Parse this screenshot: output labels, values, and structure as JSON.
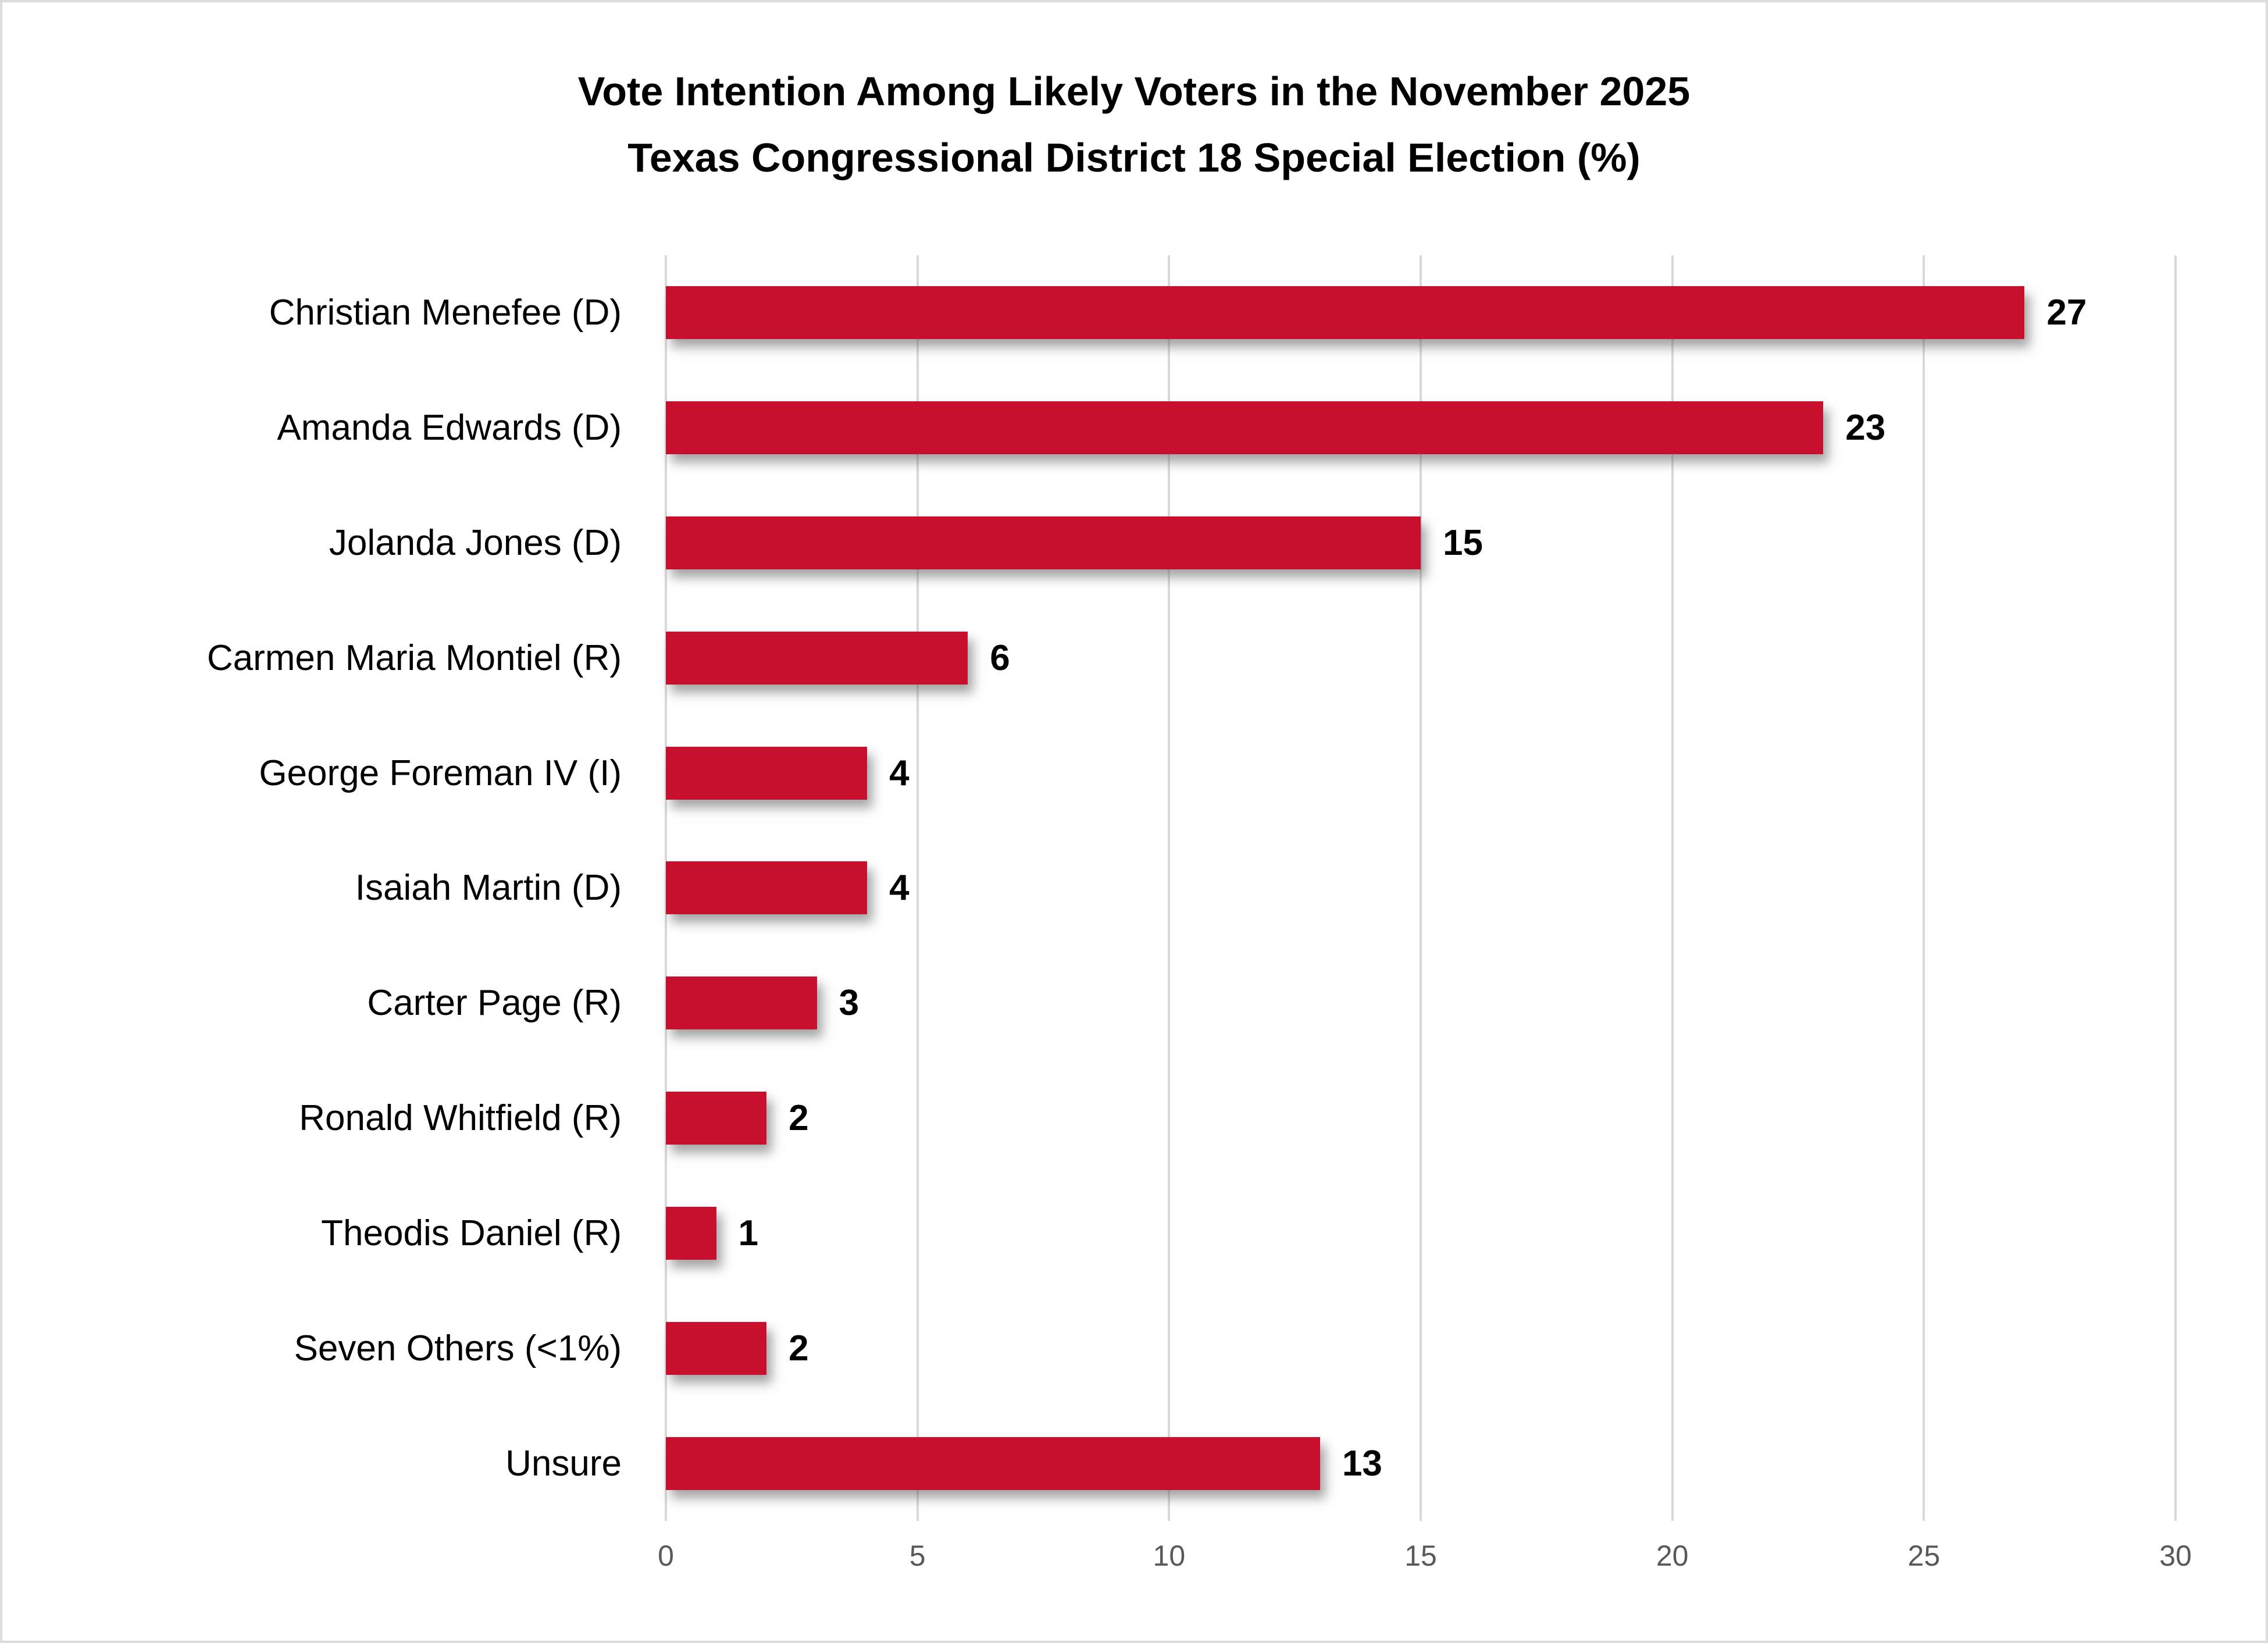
{
  "title": {
    "line1": "Vote Intention Among Likely Voters in the November 2025",
    "line2": "Texas Congressional District 18 Special Election (%)"
  },
  "chart_data": {
    "type": "bar",
    "orientation": "horizontal",
    "title": "Vote Intention Among Likely Voters in the November 2025 Texas Congressional District 18 Special Election (%)",
    "categories": [
      "Christian Menefee (D)",
      "Amanda Edwards (D)",
      "Jolanda Jones (D)",
      "Carmen Maria Montiel (R)",
      "George Foreman IV (I)",
      "Isaiah Martin (D)",
      "Carter Page (R)",
      "Ronald Whitfield (R)",
      "Theodis Daniel (R)",
      "Seven Others (<1%)",
      "Unsure"
    ],
    "values": [
      27,
      23,
      15,
      6,
      4,
      4,
      3,
      2,
      1,
      2,
      13
    ],
    "value_labels": [
      "27",
      "23",
      "15",
      "6",
      "4",
      "4",
      "3",
      "2",
      "1",
      "2",
      "13"
    ],
    "xlabel": "",
    "ylabel": "",
    "xlim": [
      0,
      30
    ],
    "xticks": [
      0,
      5,
      10,
      15,
      20,
      25,
      30
    ],
    "grid": "vertical gridlines at each x tick",
    "legend": "none",
    "data_labels": "bold value at end of each bar",
    "colors": {
      "bar": "#C8102E",
      "tick_label": "#595959",
      "gridline": "#D9D9D9",
      "label_text": "#000000",
      "frame_border": "#DCDCDC",
      "background": "#FFFFFF"
    }
  }
}
